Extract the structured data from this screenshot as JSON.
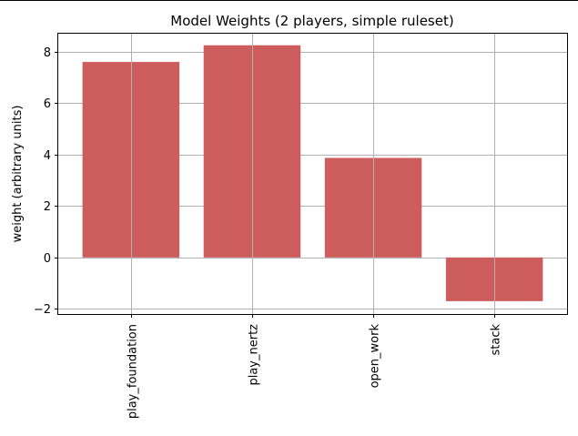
{
  "chart_data": {
    "type": "bar",
    "title": "Model Weights (2 players, simple ruleset)",
    "xlabel": "",
    "ylabel": "weight (arbitrary units)",
    "categories": [
      "play_foundation",
      "play_nertz",
      "open_work",
      "stack"
    ],
    "values": [
      7.6,
      8.25,
      3.87,
      -1.7
    ],
    "ylim": [
      -2.2,
      8.7
    ],
    "yticks": [
      -2,
      0,
      2,
      4,
      6,
      8
    ],
    "grid": true,
    "bar_color": "#cd5c5c",
    "grid_color": "#b0b0b0"
  }
}
